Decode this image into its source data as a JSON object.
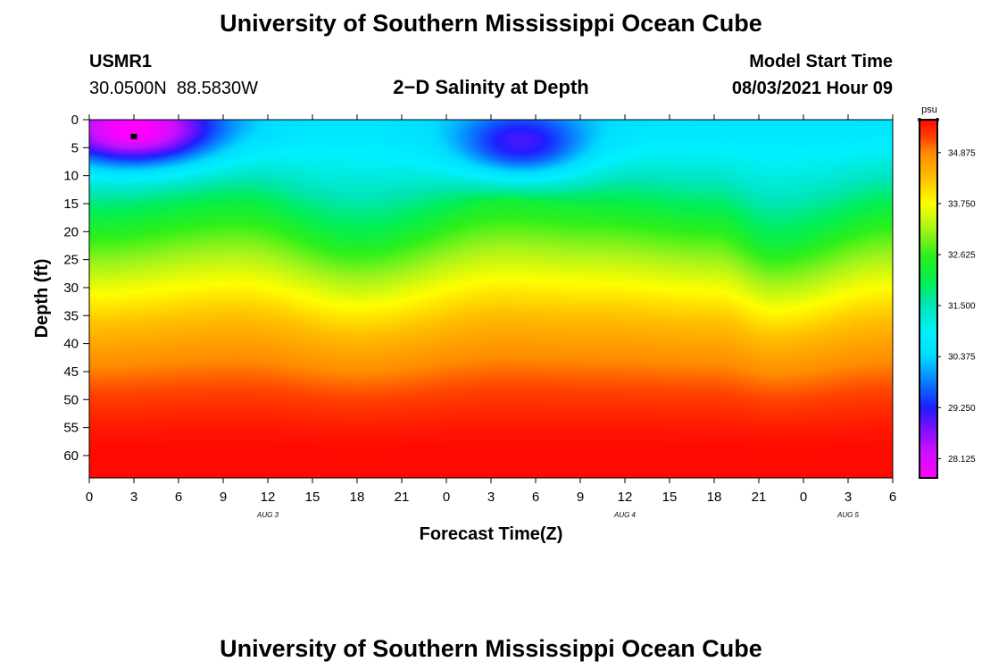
{
  "header": {
    "title_top": "University of Southern Mississippi Ocean Cube",
    "station_id": "USMR1",
    "coords": "30.0500N  88.5830W",
    "plot_title": "2−D Salinity at Depth",
    "model_start_label": "Model Start Time",
    "model_start_value": "08/03/2021 Hour 09"
  },
  "footer": {
    "title_bottom": "University of Southern Mississippi Ocean Cube"
  },
  "chart_data": {
    "type": "heatmap",
    "title": "2−D Salinity at Depth",
    "xlabel": "Forecast Time(Z)",
    "ylabel": "Depth (ft)",
    "x_ticks": [
      "0",
      "3",
      "6",
      "9",
      "12",
      "15",
      "18",
      "21",
      "0",
      "3",
      "6",
      "9",
      "12",
      "15",
      "18",
      "21",
      "0",
      "3",
      "6"
    ],
    "x_hours": [
      0,
      3,
      6,
      9,
      12,
      15,
      18,
      21,
      24,
      27,
      30,
      33,
      36,
      39,
      42,
      45,
      48,
      51,
      54
    ],
    "xlim": [
      0,
      54
    ],
    "date_labels": [
      {
        "label": "AUG 3",
        "hour": 12
      },
      {
        "label": "AUG 4",
        "hour": 36
      },
      {
        "label": "AUG 5",
        "hour": 51
      }
    ],
    "y_ticks": [
      0,
      5,
      10,
      15,
      20,
      25,
      30,
      35,
      40,
      45,
      50,
      55,
      60
    ],
    "ylim": [
      0,
      64
    ],
    "marker": {
      "hour": 3,
      "depth": 3
    },
    "colorbar": {
      "unit": "psu",
      "range": [
        27.7,
        35.6
      ],
      "tick_labels": [
        "34.875",
        "33.750",
        "32.625",
        "31.500",
        "30.375",
        "29.250",
        "28.125"
      ],
      "tick_values": [
        34.875,
        33.75,
        32.625,
        31.5,
        30.375,
        29.25,
        28.125
      ]
    },
    "color_stops": [
      {
        "value": 27.7,
        "color": "#ff00ff"
      },
      {
        "value": 28.3,
        "color": "#cc10ff"
      },
      {
        "value": 28.8,
        "color": "#7a10ff"
      },
      {
        "value": 29.25,
        "color": "#1e1eff"
      },
      {
        "value": 29.8,
        "color": "#0a7aff"
      },
      {
        "value": 30.4,
        "color": "#00dcff"
      },
      {
        "value": 30.9,
        "color": "#00f0ff"
      },
      {
        "value": 31.5,
        "color": "#00e6b8"
      },
      {
        "value": 32.0,
        "color": "#00ee55"
      },
      {
        "value": 32.6,
        "color": "#2cf01a"
      },
      {
        "value": 33.2,
        "color": "#a8f41a"
      },
      {
        "value": 33.75,
        "color": "#ffff00"
      },
      {
        "value": 34.3,
        "color": "#ffbe00"
      },
      {
        "value": 34.875,
        "color": "#ff8c00"
      },
      {
        "value": 35.2,
        "color": "#ff4400"
      },
      {
        "value": 35.6,
        "color": "#ff0a00"
      }
    ],
    "model": {
      "surface_base": 30.6,
      "surface_lows": [
        {
          "hour": 3,
          "depth": 3,
          "amp": 3.4,
          "sx": 5.5,
          "sy": 6.5
        },
        {
          "hour": 29,
          "depth": 6,
          "amp": 2.4,
          "sx": 4.5,
          "sy": 6.5
        }
      ],
      "surface_lows_falloff_depth": 16,
      "green_band_center": [
        {
          "hour": 0,
          "depth": 18
        },
        {
          "hour": 10,
          "depth": 15
        },
        {
          "hour": 18,
          "depth": 21
        },
        {
          "hour": 28,
          "depth": 14
        },
        {
          "hour": 34,
          "depth": 15
        },
        {
          "hour": 42,
          "depth": 17
        },
        {
          "hour": 46,
          "depth": 22
        },
        {
          "hour": 54,
          "depth": 16
        }
      ],
      "deep_value": 35.6,
      "deep_depth": 60
    }
  }
}
